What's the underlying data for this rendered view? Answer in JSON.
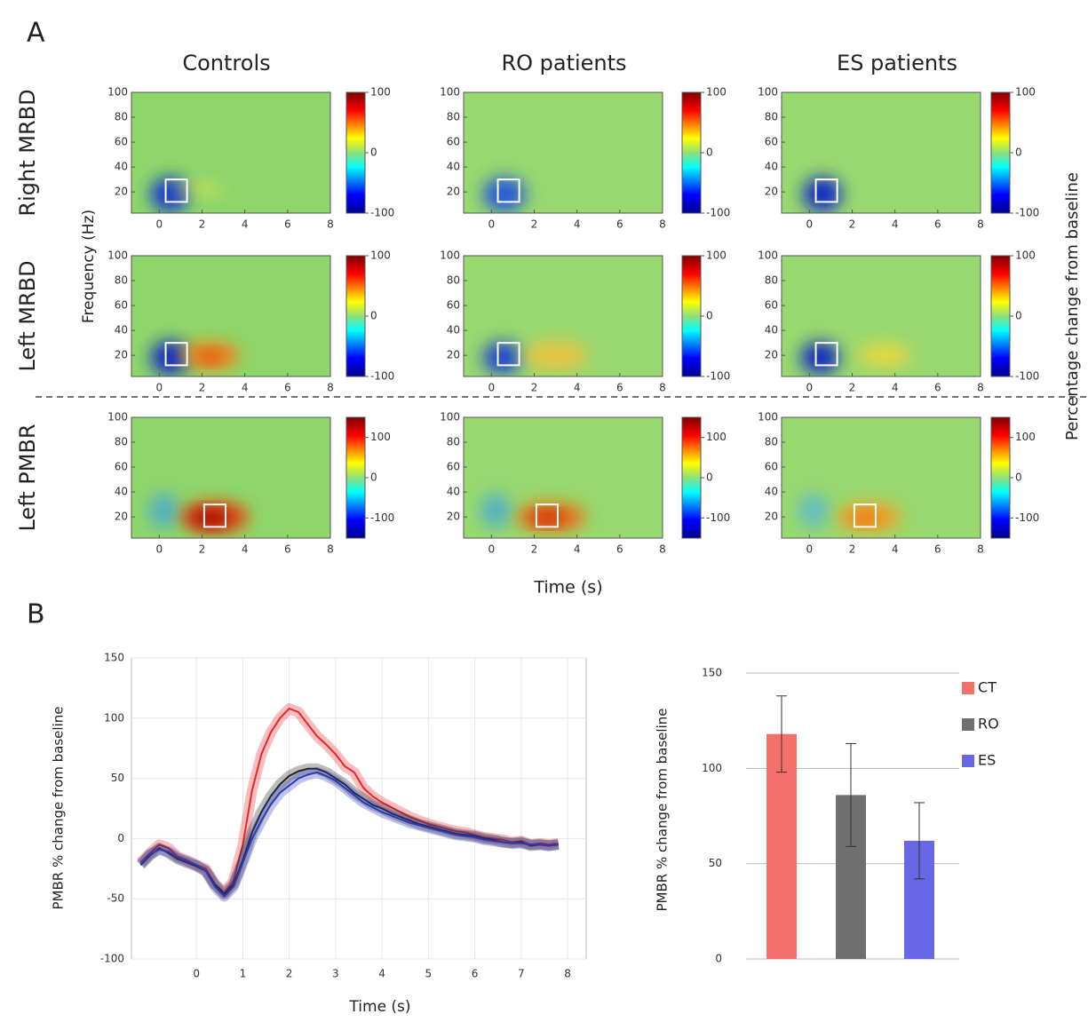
{
  "panel_labels": [
    "A",
    "B"
  ],
  "chart_data": [
    {
      "type": "heatmap-grid",
      "columns": [
        "Controls",
        "RO patients",
        "ES patients"
      ],
      "rows": [
        {
          "label": "Right MRBD",
          "clim": [
            -100,
            100
          ],
          "cticks": [
            -100,
            0,
            100
          ]
        },
        {
          "label": "Left MRBD",
          "clim": [
            -100,
            100
          ],
          "cticks": [
            -100,
            0,
            100
          ]
        },
        {
          "label": "Left PMBR",
          "clim": [
            -150,
            150
          ],
          "cticks": [
            -100,
            0,
            100
          ]
        }
      ],
      "xlabel": "Time (s)",
      "ylabel": "Frequency (Hz)",
      "colorbar_label": "Percentage change from baseline",
      "xlim": [
        -1.3,
        8
      ],
      "xticks": [
        0,
        2,
        4,
        6,
        8
      ],
      "ylim": [
        3,
        100
      ],
      "yticks": [
        20,
        40,
        60,
        80,
        100
      ]
    },
    {
      "type": "line",
      "xlabel": "Time (s)",
      "ylabel": "PMBR % change from baseline",
      "xlim": [
        -1.4,
        8.4
      ],
      "xticks": [
        0,
        1,
        2,
        3,
        4,
        5,
        6,
        7,
        8
      ],
      "ylim": [
        -100,
        150
      ],
      "yticks": [
        -100,
        -50,
        0,
        50,
        100,
        150
      ],
      "grid": true,
      "x": [
        -1.2,
        -1,
        -0.8,
        -0.6,
        -0.4,
        -0.2,
        0,
        0.2,
        0.4,
        0.6,
        0.8,
        1,
        1.2,
        1.4,
        1.6,
        1.8,
        2,
        2.2,
        2.4,
        2.6,
        2.8,
        3,
        3.2,
        3.4,
        3.6,
        3.8,
        4,
        4.2,
        4.4,
        4.6,
        4.8,
        5,
        5.2,
        5.4,
        5.6,
        5.8,
        6,
        6.2,
        6.4,
        6.6,
        6.8,
        7,
        7.2,
        7.4,
        7.6,
        7.8
      ],
      "series": [
        {
          "name": "CT",
          "color": "#e8262b",
          "values": [
            -20,
            -12,
            -5,
            -8,
            -15,
            -18,
            -22,
            -25,
            -38,
            -45,
            -35,
            -5,
            40,
            70,
            88,
            100,
            108,
            105,
            95,
            85,
            78,
            70,
            60,
            55,
            42,
            35,
            30,
            26,
            22,
            18,
            15,
            12,
            10,
            8,
            6,
            5,
            3,
            1,
            0,
            -1,
            -3,
            -2,
            -5,
            -4,
            -5,
            -4
          ]
        },
        {
          "name": "RO",
          "color": "#222222",
          "values": [
            -22,
            -14,
            -8,
            -12,
            -17,
            -20,
            -23,
            -27,
            -38,
            -46,
            -38,
            -18,
            5,
            22,
            35,
            45,
            52,
            56,
            58,
            58,
            55,
            50,
            45,
            38,
            33,
            28,
            25,
            21,
            18,
            15,
            12,
            10,
            8,
            6,
            4,
            3,
            2,
            0,
            -1,
            -3,
            -4,
            -3,
            -6,
            -5,
            -6,
            -5
          ]
        },
        {
          "name": "ES",
          "color": "#2a3ab8",
          "values": [
            -21,
            -13,
            -9,
            -11,
            -16,
            -19,
            -22,
            -27,
            -40,
            -48,
            -40,
            -20,
            0,
            15,
            28,
            38,
            44,
            50,
            53,
            55,
            52,
            48,
            42,
            36,
            30,
            26,
            22,
            19,
            16,
            13,
            11,
            9,
            7,
            5,
            3,
            2,
            1,
            -1,
            -2,
            -3,
            -4,
            -4,
            -5,
            -5,
            -6,
            -5
          ]
        }
      ]
    },
    {
      "type": "bar",
      "ylabel": "PMBR % change from baseline",
      "categories": [
        "CT",
        "RO",
        "ES"
      ],
      "values": [
        118,
        86,
        62
      ],
      "errors": [
        20,
        27,
        20
      ],
      "colors": [
        "#f4716b",
        "#6f6f6f",
        "#6767e6"
      ],
      "ylim": [
        0,
        150
      ],
      "yticks": [
        0,
        50,
        100,
        150
      ],
      "grid": true,
      "legend": "right"
    }
  ]
}
